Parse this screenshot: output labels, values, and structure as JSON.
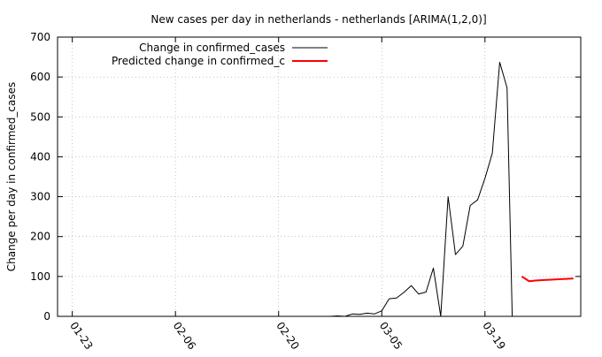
{
  "chart_data": {
    "type": "line",
    "title": "New cases per day in netherlands - netherlands [ARIMA(1,2,0)]",
    "xlabel": "",
    "ylabel": "Change per day in confirmed_cases",
    "x_ticks": [
      "01-23",
      "02-06",
      "02-20",
      "03-05",
      "03-19"
    ],
    "x_tick_days": [
      0,
      14,
      28,
      42,
      56
    ],
    "x_range_days": [
      -2,
      69
    ],
    "y_ticks": [
      0,
      100,
      200,
      300,
      400,
      500,
      600,
      700
    ],
    "ylim": [
      0,
      700
    ],
    "grid": "dotted",
    "legend": "top-left",
    "series": [
      {
        "name": "Change in confirmed_cases",
        "color": "#000000",
        "x": [
          35,
          36,
          37,
          38,
          39,
          40,
          41,
          42,
          43,
          44,
          45,
          46,
          47,
          48,
          49,
          50,
          51,
          52,
          53,
          54,
          55,
          56,
          57,
          58,
          59
        ],
        "values": [
          0,
          1,
          0,
          6,
          5,
          8,
          6,
          14,
          44,
          46,
          60,
          77,
          56,
          61,
          121,
          0,
          300,
          155,
          176,
          278,
          292,
          346,
          409,
          637,
          573
        ],
        "end_x": 59.7,
        "end_y": 0
      },
      {
        "name": "Predicted change in confirmed_c",
        "color": "#ff0000",
        "x": [
          61,
          62,
          63,
          64,
          65,
          66,
          67,
          68
        ],
        "values": [
          100,
          88,
          90,
          91,
          92,
          93,
          94,
          95
        ]
      }
    ]
  }
}
